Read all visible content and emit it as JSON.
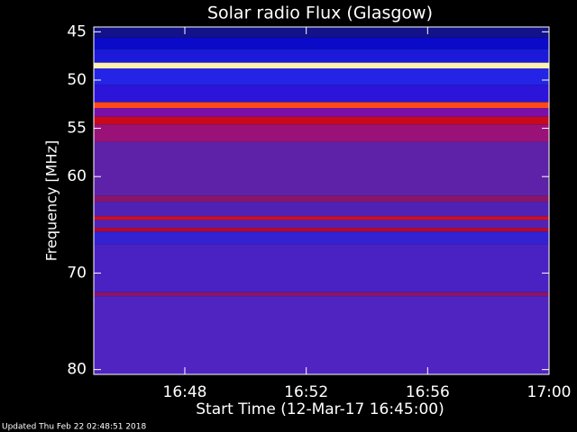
{
  "chart_data": {
    "type": "spectrogram",
    "title": "Solar radio Flux (Glasgow)",
    "ylabel": "Frequency [MHz]",
    "xlabel": "Start Time (12-Mar-17 16:45:00)",
    "footer": "Updated Thu Feb 22 02:48:51 2018",
    "ylim": [
      44.5,
      80.5
    ],
    "yticks": [
      45,
      50,
      55,
      60,
      70,
      80
    ],
    "xlim": [
      0,
      15
    ],
    "xticks": [
      {
        "value": 3,
        "label": "16:48"
      },
      {
        "value": 7,
        "label": "16:52"
      },
      {
        "value": 11,
        "label": "16:56"
      },
      {
        "value": 15,
        "label": "17:00"
      }
    ],
    "bands": [
      {
        "from": 44.5,
        "to": 45.6,
        "color": "#12128a"
      },
      {
        "from": 45.6,
        "to": 46.8,
        "color": "#0a0ac8"
      },
      {
        "from": 46.8,
        "to": 48.2,
        "color": "#1a1ad8"
      },
      {
        "from": 48.2,
        "to": 48.8,
        "color": "#fff0b0"
      },
      {
        "from": 48.8,
        "to": 50.5,
        "color": "#2424e6"
      },
      {
        "from": 50.5,
        "to": 52.3,
        "color": "#2c14d8"
      },
      {
        "from": 52.3,
        "to": 52.9,
        "color": "#ff4a14"
      },
      {
        "from": 52.9,
        "to": 53.8,
        "color": "#7a10a8"
      },
      {
        "from": 53.8,
        "to": 54.6,
        "color": "#c8081c"
      },
      {
        "from": 54.6,
        "to": 56.4,
        "color": "#9a1278"
      },
      {
        "from": 56.4,
        "to": 62.0,
        "color": "#5e22a8"
      },
      {
        "from": 62.0,
        "to": 62.6,
        "color": "#8a1468"
      },
      {
        "from": 62.6,
        "to": 64.1,
        "color": "#5022b4"
      },
      {
        "from": 64.1,
        "to": 64.5,
        "color": "#c41030"
      },
      {
        "from": 64.5,
        "to": 65.3,
        "color": "#5022b4"
      },
      {
        "from": 65.3,
        "to": 65.7,
        "color": "#b40830"
      },
      {
        "from": 65.7,
        "to": 67.0,
        "color": "#3222d2"
      },
      {
        "from": 67.0,
        "to": 72.0,
        "color": "#4a22c4"
      },
      {
        "from": 72.0,
        "to": 72.4,
        "color": "#8a1468"
      },
      {
        "from": 72.4,
        "to": 80.5,
        "color": "#5024c0"
      }
    ]
  }
}
